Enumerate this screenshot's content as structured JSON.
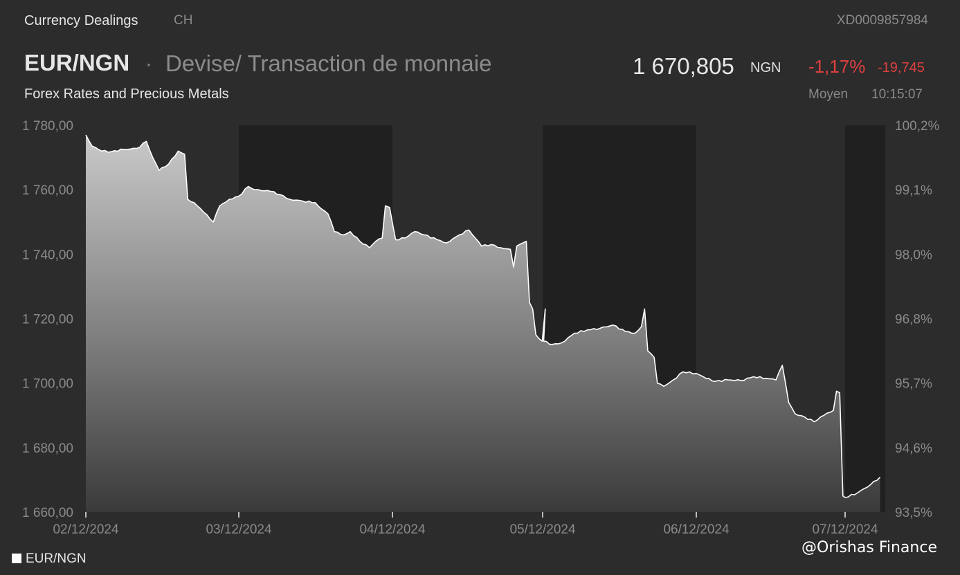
{
  "header": {
    "source": "Currency Dealings",
    "market": "CH",
    "isin": "XD0009857984",
    "pair": "EUR/NGN",
    "separator": "·",
    "instrument_type": "Devise/ Transaction de monnaie",
    "price": "1 670,805",
    "currency": "NGN",
    "change_pct": "-1,17%",
    "change_abs": "-19,745",
    "subtitle": "Forex Rates and Precious Metals",
    "price_mode": "Moyen",
    "time": "10:15:07"
  },
  "colors": {
    "background": "#2c2c2c",
    "shade": "#202020",
    "line": "#ffffff",
    "negative": "#e04040",
    "axis_text": "#8a8a8a"
  },
  "legend": {
    "label": "EUR/NGN"
  },
  "watermark": "@Orishas Finance",
  "chart_data": {
    "type": "area",
    "title": "",
    "xlabel": "",
    "ylabel": "",
    "ylim": [
      1660,
      1780
    ],
    "y2lim": [
      93.5,
      100.2
    ],
    "grid": false,
    "legend_position": "bottom-left",
    "categories": [
      "02/12/2024",
      "03/12/2024",
      "04/12/2024",
      "05/12/2024",
      "06/12/2024",
      "07/12/2024"
    ],
    "y_ticks": [
      "1 660,00",
      "1 680,00",
      "1 700,00",
      "1 720,00",
      "1 740,00",
      "1 760,00",
      "1 780,00"
    ],
    "y2_ticks": [
      "93,5%",
      "94,6%",
      "95,7%",
      "96,8%",
      "98,0%",
      "99,1%",
      "100,2%"
    ],
    "series": [
      {
        "name": "EUR/NGN",
        "points": [
          [
            "02/12/2024 00:00",
            1777.0
          ],
          [
            "02/12/2024 01:00",
            1773.5
          ],
          [
            "02/12/2024 02:30",
            1772.0
          ],
          [
            "02/12/2024 04:00",
            1771.8
          ],
          [
            "02/12/2024 06:00",
            1772.5
          ],
          [
            "02/12/2024 08:00",
            1772.8
          ],
          [
            "02/12/2024 09:30",
            1775.0
          ],
          [
            "02/12/2024 10:30",
            1770.0
          ],
          [
            "02/12/2024 11:30",
            1766.0
          ],
          [
            "02/12/2024 13:00",
            1768.0
          ],
          [
            "02/12/2024 14:30",
            1772.0
          ],
          [
            "02/12/2024 15:30",
            1771.0
          ],
          [
            "02/12/2024 16:00",
            1757.0
          ],
          [
            "02/12/2024 17:00",
            1756.0
          ],
          [
            "02/12/2024 18:30",
            1753.0
          ],
          [
            "02/12/2024 20:00",
            1750.0
          ],
          [
            "02/12/2024 21:00",
            1755.0
          ],
          [
            "02/12/2024 22:30",
            1757.0
          ],
          [
            "03/12/2024 00:00",
            1758.0
          ],
          [
            "03/12/2024 01:30",
            1761.0
          ],
          [
            "03/12/2024 02:30",
            1760.0
          ],
          [
            "03/12/2024 05:00",
            1759.5
          ],
          [
            "03/12/2024 06:30",
            1758.5
          ],
          [
            "03/12/2024 08:00",
            1757.0
          ],
          [
            "03/12/2024 10:00",
            1756.5
          ],
          [
            "03/12/2024 12:00",
            1756.0
          ],
          [
            "03/12/2024 13:00",
            1754.0
          ],
          [
            "03/12/2024 14:00",
            1752.5
          ],
          [
            "03/12/2024 15:00",
            1747.0
          ],
          [
            "03/12/2024 16:30",
            1746.0
          ],
          [
            "03/12/2024 17:30",
            1747.0
          ],
          [
            "03/12/2024 19:00",
            1744.0
          ],
          [
            "03/12/2024 20:30",
            1742.0
          ],
          [
            "03/12/2024 21:30",
            1744.0
          ],
          [
            "03/12/2024 22:30",
            1745.0
          ],
          [
            "03/12/2024 23:00",
            1755.0
          ],
          [
            "03/12/2024 23:40",
            1754.5
          ],
          [
            "04/12/2024 00:30",
            1744.5
          ],
          [
            "04/12/2024 02:00",
            1745.0
          ],
          [
            "04/12/2024 03:30",
            1747.0
          ],
          [
            "04/12/2024 05:00",
            1746.0
          ],
          [
            "04/12/2024 07:00",
            1744.5
          ],
          [
            "04/12/2024 08:30",
            1743.5
          ],
          [
            "04/12/2024 10:30",
            1746.0
          ],
          [
            "04/12/2024 12:00",
            1747.5
          ],
          [
            "04/12/2024 13:00",
            1745.0
          ],
          [
            "04/12/2024 14:00",
            1742.5
          ],
          [
            "04/12/2024 15:30",
            1743.0
          ],
          [
            "04/12/2024 17:00",
            1742.0
          ],
          [
            "04/12/2024 18:30",
            1741.5
          ],
          [
            "04/12/2024 19:00",
            1736.0
          ],
          [
            "04/12/2024 19:30",
            1742.5
          ],
          [
            "04/12/2024 20:30",
            1743.5
          ],
          [
            "04/12/2024 21:00",
            1744.0
          ],
          [
            "04/12/2024 21:30",
            1725.0
          ],
          [
            "04/12/2024 22:00",
            1723.0
          ],
          [
            "04/12/2024 22:30",
            1715.0
          ],
          [
            "04/12/2024 23:30",
            1713.0
          ],
          [
            "04/12/2024 23:59",
            1723.0
          ],
          [
            "05/12/2024 00:10",
            1713.0
          ],
          [
            "05/12/2024 01:30",
            1712.0
          ],
          [
            "05/12/2024 03:00",
            1712.5
          ],
          [
            "05/12/2024 05:00",
            1715.5
          ],
          [
            "05/12/2024 07:00",
            1716.5
          ],
          [
            "05/12/2024 09:00",
            1717.0
          ],
          [
            "05/12/2024 11:00",
            1718.0
          ],
          [
            "05/12/2024 13:00",
            1716.0
          ],
          [
            "05/12/2024 14:30",
            1715.5
          ],
          [
            "05/12/2024 15:30",
            1717.5
          ],
          [
            "05/12/2024 16:00",
            1723.0
          ],
          [
            "05/12/2024 16:30",
            1710.0
          ],
          [
            "05/12/2024 17:30",
            1708.0
          ],
          [
            "05/12/2024 18:00",
            1700.0
          ],
          [
            "05/12/2024 19:00",
            1699.0
          ],
          [
            "05/12/2024 20:30",
            1701.0
          ],
          [
            "05/12/2024 22:00",
            1703.5
          ],
          [
            "06/12/2024 00:00",
            1703.0
          ],
          [
            "06/12/2024 01:30",
            1701.5
          ],
          [
            "06/12/2024 03:00",
            1700.5
          ],
          [
            "06/12/2024 05:00",
            1701.0
          ],
          [
            "06/12/2024 07:00",
            1700.8
          ],
          [
            "06/12/2024 09:00",
            1702.0
          ],
          [
            "06/12/2024 11:00",
            1701.5
          ],
          [
            "06/12/2024 12:30",
            1701.0
          ],
          [
            "06/12/2024 13:30",
            1705.5
          ],
          [
            "06/12/2024 14:30",
            1694.0
          ],
          [
            "06/12/2024 15:30",
            1690.5
          ],
          [
            "06/12/2024 17:00",
            1689.5
          ],
          [
            "06/12/2024 18:30",
            1688.0
          ],
          [
            "06/12/2024 20:00",
            1690.0
          ],
          [
            "06/12/2024 21:30",
            1691.5
          ],
          [
            "06/12/2024 22:00",
            1697.5
          ],
          [
            "06/12/2024 22:30",
            1697.0
          ],
          [
            "06/12/2024 23:00",
            1665.0
          ],
          [
            "07/12/2024 00:00",
            1664.5
          ],
          [
            "07/12/2024 02:00",
            1666.0
          ],
          [
            "07/12/2024 04:00",
            1668.5
          ],
          [
            "07/12/2024 05:30",
            1670.8
          ]
        ]
      }
    ]
  }
}
